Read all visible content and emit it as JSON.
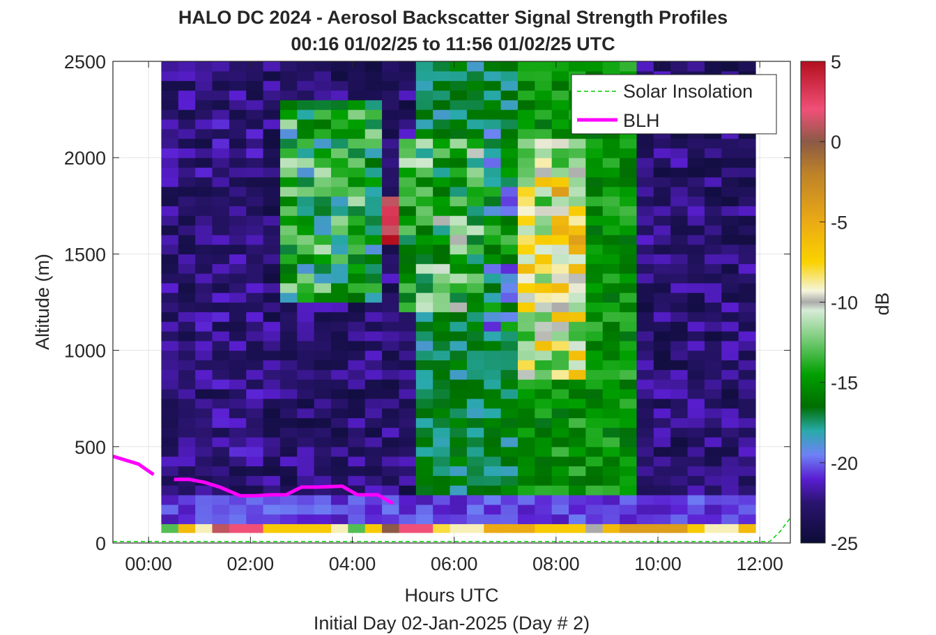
{
  "chart_data": {
    "type": "heatmap",
    "title": "HALO DC 2024 - Aerosol Backscatter Signal Strength Profiles",
    "subtitle": "00:16 01/02/25 to 11:56 01/02/25  UTC",
    "xlabel": "Hours UTC",
    "xlabel2": "Initial Day 02-Jan-2025 (Day # 2)",
    "ylabel": "Altitude (m)",
    "xlim": [
      -0.7,
      12.6
    ],
    "ylim": [
      0,
      2500
    ],
    "x_ticks": [
      0,
      2,
      4,
      6,
      8,
      10,
      12
    ],
    "x_tick_labels": [
      "00:00",
      "02:00",
      "04:00",
      "06:00",
      "08:00",
      "10:00",
      "12:00"
    ],
    "y_ticks": [
      0,
      500,
      1000,
      1500,
      2000,
      2500
    ],
    "y_tick_labels": [
      "0",
      "500",
      "1000",
      "1500",
      "2000",
      "2500"
    ],
    "grid": true,
    "colorbar": {
      "label": "dB",
      "range": [
        -25,
        5
      ],
      "ticks": [
        5,
        0,
        -5,
        -10,
        -15,
        -20,
        -25
      ],
      "tick_labels": [
        "5",
        "0",
        "-5",
        "-10",
        "-15",
        "-20",
        "-25"
      ]
    },
    "heatmap": {
      "x_start": 0.25,
      "x_step": 0.3333,
      "n_cols": 35,
      "y_start": 100,
      "y_step": 50,
      "n_rows": 48,
      "column_profiles": [
        {
          "range": [
            0,
            5
          ],
          "value": -22.5
        },
        {
          "range": [
            6,
            14
          ],
          "value": -22.8
        },
        {
          "range": [
            15,
            20
          ],
          "value": -17
        },
        {
          "range": [
            21,
            27
          ],
          "value": -15
        },
        {
          "range": [
            28,
            34
          ],
          "value": -22.8
        }
      ],
      "surface_row_values": [
        -13,
        -6,
        -9,
        1,
        2,
        2,
        -7,
        -7,
        -7,
        -7,
        -9,
        -13,
        -7,
        0,
        2,
        2,
        -8,
        -9,
        -9,
        -5,
        -5,
        -5,
        -7,
        -7,
        -7,
        -10,
        -6,
        -4,
        -4,
        -4,
        -4,
        -7,
        -9,
        -9,
        -6
      ],
      "cloud_segments": [
        {
          "cols": [
            7,
            12
          ],
          "alt_range": [
            1250,
            2250
          ],
          "value": -15
        },
        {
          "cols": [
            13,
            13
          ],
          "alt_range": [
            1550,
            1750
          ],
          "value": 4
        },
        {
          "cols": [
            14,
            18
          ],
          "alt_range": [
            1200,
            2050
          ],
          "value": -14
        },
        {
          "cols": [
            19,
            20
          ],
          "alt_range": [
            1100,
            2150
          ],
          "value": -17
        },
        {
          "cols": [
            21,
            24
          ],
          "alt_range": [
            850,
            2050
          ],
          "value": -10
        },
        {
          "cols": [
            23,
            24
          ],
          "alt_range": [
            1300,
            1800
          ],
          "value": -8
        }
      ]
    },
    "series": [
      {
        "name": "Solar Insolation",
        "color": "#00cc00",
        "style": "dashed",
        "x": [
          -0.7,
          12.2,
          12.4,
          12.6
        ],
        "y": [
          8,
          8,
          60,
          130
        ]
      },
      {
        "name": "BLH",
        "color": "#ff00ff",
        "style": "solid",
        "segments": [
          {
            "x": [
              -0.7,
              -0.2,
              0.1
            ],
            "y": [
              450,
              410,
              355
            ]
          },
          {
            "x": [
              0.5,
              0.8,
              1.1,
              1.4,
              1.8,
              2.1,
              2.4,
              2.7,
              3.0,
              3.3,
              3.8,
              4.1,
              4.5,
              4.8
            ],
            "y": [
              330,
              330,
              315,
              290,
              245,
              245,
              250,
              250,
              290,
              290,
              295,
              250,
              250,
              205
            ]
          }
        ]
      }
    ],
    "legend": {
      "position": "top-right",
      "entries": [
        "Solar Insolation",
        "BLH"
      ]
    }
  }
}
